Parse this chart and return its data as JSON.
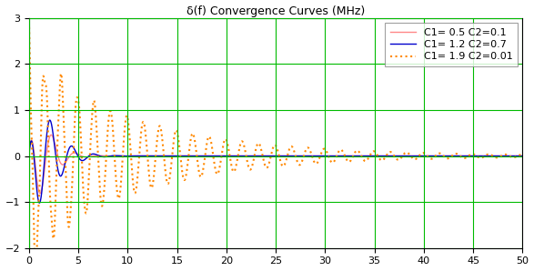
{
  "title": "δ(f) Convergence Curves (MHz)",
  "xlim": [
    0,
    50
  ],
  "ylim": [
    -2,
    3
  ],
  "yticks": [
    -2,
    -1,
    0,
    1,
    2,
    3
  ],
  "xticks": [
    0,
    5,
    10,
    15,
    20,
    25,
    30,
    35,
    40,
    45,
    50
  ],
  "grid_color": "#00bb00",
  "bg_color": "#ffffff",
  "series": [
    {
      "label": "C1= 0.5 C2=0.1",
      "color": "#ff8888",
      "linestyle": "-",
      "linewidth": 1.0,
      "amp": 2.5,
      "decay": 1.2,
      "freq": 0.85,
      "phase": 0.0,
      "extra_amp": 0.0,
      "extra_freq": 0.0,
      "extra_decay": 1.0
    },
    {
      "label": "C1= 1.2 C2=0.7",
      "color": "#0000cc",
      "linestyle": "-",
      "linewidth": 1.0,
      "amp": 2.5,
      "decay": 1.0,
      "freq": 0.9,
      "phase": 0.05,
      "extra_amp": 0.0,
      "extra_freq": 0.0,
      "extra_decay": 1.0
    },
    {
      "label": "C1= 1.9 C2=0.01",
      "color": "#ff8800",
      "linestyle": ":",
      "linewidth": 1.5,
      "amp": 2.0,
      "decay": 0.12,
      "freq": 1.1,
      "phase": 0.3,
      "extra_amp": 0.0,
      "extra_freq": 0.0,
      "extra_decay": 1.0
    }
  ],
  "legend_loc": "upper right",
  "title_fontsize": 9,
  "tick_fontsize": 8,
  "legend_fontsize": 8
}
